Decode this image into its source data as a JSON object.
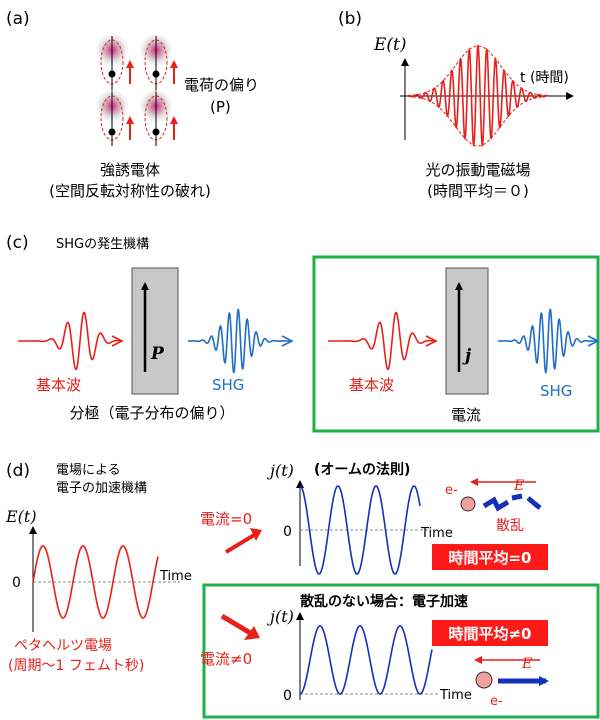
{
  "colors": {
    "red": "#e8201a",
    "blue": "#1f6fc5",
    "dark_blue": "#1530b8",
    "green": "#1fb04a",
    "gray": "#c8c8c8",
    "black": "#000000"
  },
  "panel_a": {
    "label": "(a)",
    "polarization_line1": "電荷の偏り",
    "polarization_line2": "(P)",
    "caption_line1": "強誘電体",
    "caption_line2": "(空間反転対称性の破れ)"
  },
  "panel_b": {
    "label": "(b)",
    "y_axis": "E(t)",
    "x_axis": "t (時間)",
    "caption_line1": "光の振動電磁場",
    "caption_line2": "(時間平均＝０)"
  },
  "panel_c": {
    "label": "(c)",
    "subtitle": "SHGの発生機構",
    "left": {
      "input_label": "基本波",
      "output_label": "SHG",
      "vector_label": "P",
      "caption": "分極（電子分布の偏り）"
    },
    "right": {
      "input_label": "基本波",
      "output_label": "SHG",
      "vector_label": "j",
      "caption": "電流"
    }
  },
  "panel_d": {
    "label": "(d)",
    "subtitle_line1": "電場による",
    "subtitle_line2": "電子の加速機構",
    "field_plot": {
      "y_axis": "E(t)",
      "zero": "0",
      "x_axis": "Time",
      "caption_line1": "ペタヘルツ電場",
      "caption_line2": "(周期〜1 フェムト秒)"
    },
    "ohm": {
      "title": "(オームの法則)",
      "y_axis": "j(t)",
      "zero": "0",
      "x_axis": "Time",
      "current_label": "電流=0",
      "electron": "e-",
      "field": "E",
      "scatter": "散乱",
      "average": "時間平均=0"
    },
    "no_scatter": {
      "title": "散乱のない場合：電子加速",
      "y_axis": "j(t)",
      "zero": "0",
      "x_axis": "Time",
      "current_label": "電流≠0",
      "electron": "e-",
      "field": "E",
      "average": "時間平均≠0"
    }
  }
}
